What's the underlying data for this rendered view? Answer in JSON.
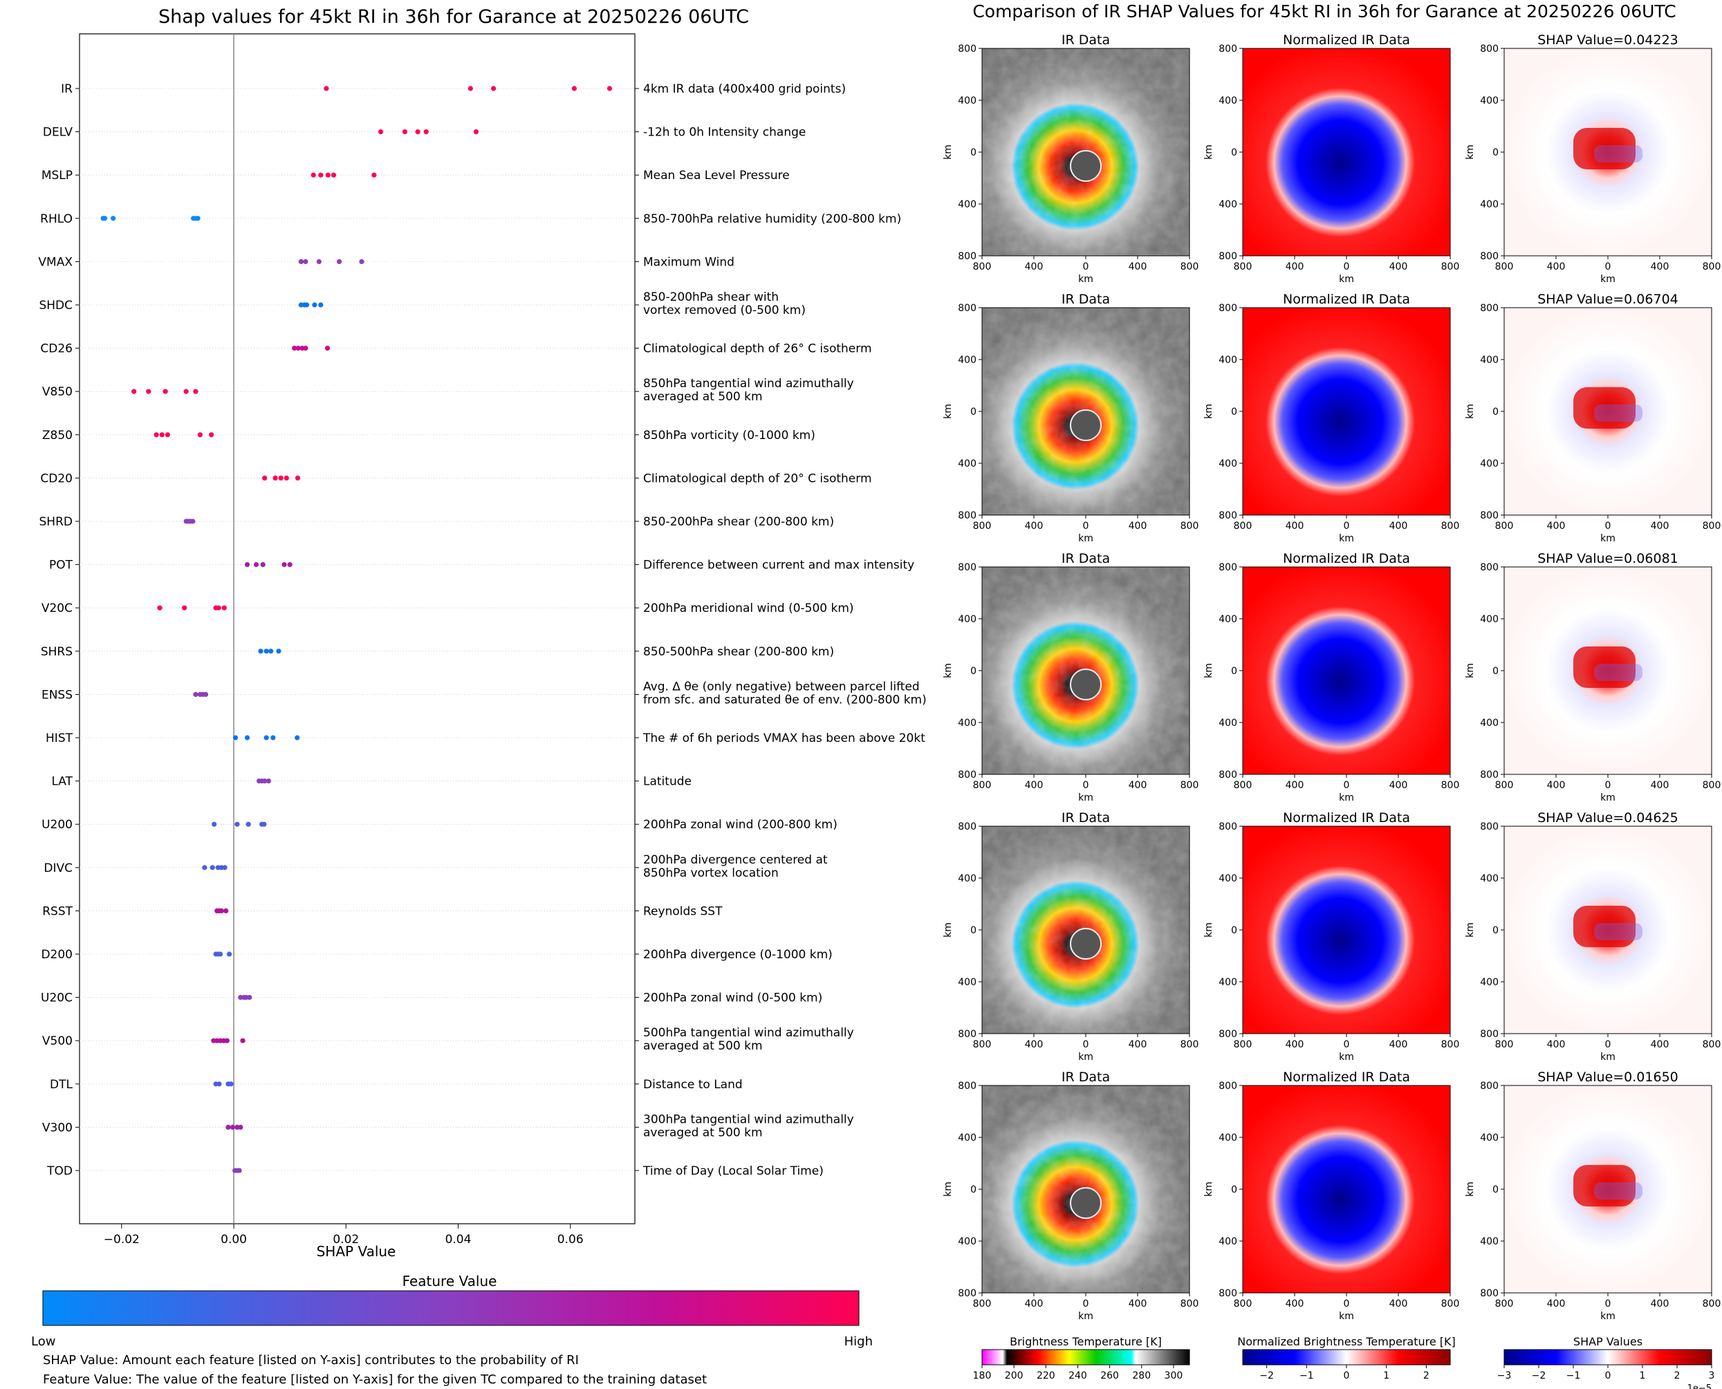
{
  "chart_data": [
    {
      "type": "scatter",
      "title": "Shap values for 45kt RI in 36h for Garance at 20250226 06UTC",
      "xlabel": "SHAP Value",
      "xlim": [
        -0.0275,
        0.0715
      ],
      "xticks": [
        "−0.02",
        "0.00",
        "0.02",
        "0.04",
        "0.06"
      ],
      "xtick_values": [
        -0.02,
        0.0,
        0.02,
        0.04,
        0.06
      ],
      "zero_line": 0.0,
      "colorbar": {
        "title": "Feature Value",
        "low": "Low",
        "high": "High",
        "colors": [
          "#008bfb",
          "#4a5fe0",
          "#8a3fc0",
          "#c0109a",
          "#ff0052"
        ]
      },
      "notes": [
        "SHAP Value: Amount each feature [listed on Y-axis] contributes to the probability of RI",
        "Feature Value: The value of the feature [listed on Y-axis] for the given TC compared to the training dataset"
      ],
      "features": [
        {
          "name": "IR",
          "desc": [
            "4km IR data (400x400 grid points)"
          ],
          "color": "#ff0052",
          "values": [
            0.0165,
            0.0422,
            0.0463,
            0.0607,
            0.067
          ]
        },
        {
          "name": "DELV",
          "desc": [
            "-12h to 0h Intensity change"
          ],
          "color": "#ff0052",
          "values": [
            0.0262,
            0.0305,
            0.0328,
            0.0343,
            0.0432
          ]
        },
        {
          "name": "MSLP",
          "desc": [
            "Mean Sea Level Pressure"
          ],
          "color": "#ff0052",
          "values": [
            0.0142,
            0.0155,
            0.0168,
            0.0178,
            0.025
          ]
        },
        {
          "name": "RHLO",
          "desc": [
            "850-700hPa relative humidity (200-800 km)"
          ],
          "color": "#008bfb",
          "values": [
            -0.0233,
            -0.023,
            -0.0215,
            -0.0072,
            -0.0068,
            -0.0064
          ]
        },
        {
          "name": "VMAX",
          "desc": [
            "Maximum Wind"
          ],
          "color": "#8a3fc0",
          "values": [
            0.012,
            0.0128,
            0.0152,
            0.0188,
            0.0228
          ]
        },
        {
          "name": "SHDC",
          "desc": [
            "850-200hPa shear with",
            "vortex removed (0-500 km)"
          ],
          "color": "#0a75e8",
          "values": [
            0.012,
            0.0126,
            0.013,
            0.0144,
            0.0155
          ]
        },
        {
          "name": "CD26",
          "desc": [
            "Climatological depth of 26° C isotherm"
          ],
          "color": "#cc0a90",
          "values": [
            0.0108,
            0.0115,
            0.0122,
            0.0128,
            0.0167
          ]
        },
        {
          "name": "V850",
          "desc": [
            "850hPa tangential wind azimuthally",
            "averaged at 500 km"
          ],
          "color": "#ff0052",
          "values": [
            -0.0178,
            -0.0152,
            -0.0122,
            -0.0085,
            -0.0068
          ]
        },
        {
          "name": "Z850",
          "desc": [
            "850hPa vorticity (0-1000 km)"
          ],
          "color": "#ff0052",
          "values": [
            -0.0138,
            -0.0128,
            -0.0118,
            -0.006,
            -0.004
          ]
        },
        {
          "name": "CD20",
          "desc": [
            "Climatological depth of 20° C isotherm"
          ],
          "color": "#ff0052",
          "values": [
            0.0055,
            0.0074,
            0.0084,
            0.0094,
            0.0114
          ]
        },
        {
          "name": "SHRD",
          "desc": [
            "850-200hPa shear (200-800 km)"
          ],
          "color": "#8a3fc0",
          "values": [
            -0.0085,
            -0.0081,
            -0.0077,
            -0.0073
          ]
        },
        {
          "name": "POT",
          "desc": [
            "Difference between current and max intensity"
          ],
          "color": "#a020a8",
          "values": [
            0.0024,
            0.004,
            0.0052,
            0.009,
            0.01
          ]
        },
        {
          "name": "V20C",
          "desc": [
            "200hPa meridional wind (0-500 km)"
          ],
          "color": "#ff0052",
          "values": [
            -0.0132,
            -0.0088,
            -0.0032,
            -0.0027,
            -0.0017
          ]
        },
        {
          "name": "SHRS",
          "desc": [
            "850-500hPa shear (200-800 km)"
          ],
          "color": "#0a75e8",
          "values": [
            0.0048,
            0.0058,
            0.0066,
            0.008
          ]
        },
        {
          "name": "ENSS",
          "desc": [
            "Avg. Δ θe (only negative) between parcel lifted",
            "from sfc. and saturated θe of env. (200-800 km)"
          ],
          "color": "#8a3fc0",
          "values": [
            -0.0068,
            -0.006,
            -0.0055,
            -0.005
          ]
        },
        {
          "name": "HIST",
          "desc": [
            "The # of 6h periods VMAX has been above 20kt"
          ],
          "color": "#0a75e8",
          "values": [
            0.0003,
            0.0024,
            0.0058,
            0.007,
            0.0113
          ]
        },
        {
          "name": "LAT",
          "desc": [
            "Latitude"
          ],
          "color": "#8a3fc0",
          "values": [
            0.0045,
            0.005,
            0.0055,
            0.0062
          ]
        },
        {
          "name": "U200",
          "desc": [
            "200hPa zonal wind (200-800 km)"
          ],
          "color": "#4a5fe0",
          "values": [
            -0.0035,
            0.0006,
            0.0026,
            0.005,
            0.0054
          ]
        },
        {
          "name": "DIVC",
          "desc": [
            "200hPa divergence centered at",
            "850hPa vortex location"
          ],
          "color": "#4a5fe0",
          "values": [
            -0.0052,
            -0.0038,
            -0.0028,
            -0.0022,
            -0.0016
          ]
        },
        {
          "name": "RSST",
          "desc": [
            "Reynolds SST"
          ],
          "color": "#b0109a",
          "values": [
            -0.003,
            -0.0026,
            -0.0022,
            -0.0014
          ]
        },
        {
          "name": "D200",
          "desc": [
            "200hPa divergence (0-1000 km)"
          ],
          "color": "#4a5fe0",
          "values": [
            -0.0032,
            -0.0028,
            -0.0024,
            -0.0008
          ]
        },
        {
          "name": "U20C",
          "desc": [
            "200hPa zonal wind (0-500 km)"
          ],
          "color": "#8a3fc0",
          "values": [
            0.0012,
            0.0018,
            0.0022,
            0.0028
          ]
        },
        {
          "name": "V500",
          "desc": [
            "500hPa tangential wind azimuthally",
            "averaged at 500 km"
          ],
          "color": "#b0109a",
          "values": [
            -0.0036,
            -0.003,
            -0.0024,
            -0.0018,
            -0.0012,
            0.0016
          ]
        },
        {
          "name": "DTL",
          "desc": [
            "Distance to Land"
          ],
          "color": "#4a5fe0",
          "values": [
            -0.0032,
            -0.0026,
            -0.001,
            -0.0005
          ]
        },
        {
          "name": "V300",
          "desc": [
            "300hPa tangential wind azimuthally",
            "averaged at 500 km"
          ],
          "color": "#a020a8",
          "values": [
            -0.001,
            -0.0002,
            0.0006,
            0.0012
          ]
        },
        {
          "name": "TOD",
          "desc": [
            "Time of Day (Local Solar Time)"
          ],
          "color": "#8a3fc0",
          "values": [
            0.0002,
            0.0006,
            0.001
          ]
        }
      ]
    },
    {
      "type": "heatmap",
      "title": "Comparison of IR SHAP Values for 45kt RI in 36h for Garance at 20250226 06UTC",
      "column_titles": [
        "IR Data",
        "Normalized IR Data",
        "SHAP Value="
      ],
      "shap_values": [
        "0.04223",
        "0.06704",
        "0.06081",
        "0.04625",
        "0.01650"
      ],
      "axis_label": "km",
      "ytick_labels": [
        "800",
        "400",
        "0",
        "400",
        "800"
      ],
      "xtick_labels": [
        "800",
        "400",
        "0",
        "400",
        "800"
      ],
      "colorbars": [
        {
          "title": "Brightness Temperature [K]",
          "ticks": [
            "180",
            "200",
            "220",
            "240",
            "260",
            "280",
            "300"
          ],
          "range": [
            180,
            310
          ],
          "stops": [
            [
              "#ff00ff",
              0
            ],
            [
              "#ffffff",
              0.1
            ],
            [
              "#000000",
              0.12
            ],
            [
              "#ff0000",
              0.27
            ],
            [
              "#ffff00",
              0.42
            ],
            [
              "#00cc00",
              0.55
            ],
            [
              "#00ffff",
              0.72
            ],
            [
              "#ffffff",
              0.74
            ],
            [
              "#000000",
              1
            ]
          ]
        },
        {
          "title": "Normalized Brightness Temperature [K]",
          "ticks": [
            "−2",
            "−1",
            "0",
            "1",
            "2"
          ],
          "range": [
            -2.6,
            2.6
          ],
          "stops": [
            [
              "#00008b",
              0
            ],
            [
              "#0000ff",
              0.25
            ],
            [
              "#ffffff",
              0.5
            ],
            [
              "#ff0000",
              0.75
            ],
            [
              "#8b0000",
              1
            ]
          ]
        },
        {
          "title": "SHAP Values",
          "ticks": [
            "−3",
            "−2",
            "−1",
            "0",
            "1",
            "2",
            "3"
          ],
          "range": [
            -3,
            3
          ],
          "offset": "1e−5",
          "stops": [
            [
              "#00008b",
              0
            ],
            [
              "#0000ff",
              0.25
            ],
            [
              "#ffffff",
              0.5
            ],
            [
              "#ff0000",
              0.75
            ],
            [
              "#8b0000",
              1
            ]
          ]
        }
      ]
    }
  ]
}
